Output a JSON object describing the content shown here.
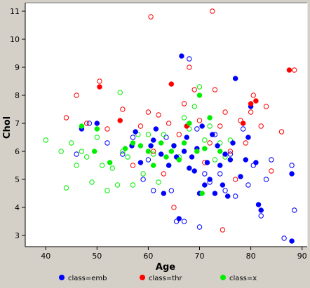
{
  "chart_data": {
    "type": "scatter",
    "title": "",
    "xlabel": "Age",
    "ylabel": "Chol",
    "xlim": [
      36,
      91
    ],
    "ylim": [
      2.6,
      11.3
    ],
    "xticks": [
      40,
      50,
      60,
      70,
      80,
      90
    ],
    "yticks": [
      3,
      4,
      5,
      6,
      7,
      8,
      9,
      10,
      11
    ],
    "grid": false,
    "legend_position": "bottom",
    "series": [
      {
        "name": "class=emb",
        "color": "#0000ff",
        "filled": [
          [
            47.0,
            6.8
          ],
          [
            50.0,
            7.0
          ],
          [
            56.8,
            6.2
          ],
          [
            57.5,
            6.7
          ],
          [
            58.5,
            5.6
          ],
          [
            60.5,
            6.2
          ],
          [
            61.0,
            6.4
          ],
          [
            61.5,
            6.8
          ],
          [
            62.5,
            5.9
          ],
          [
            63.0,
            4.5
          ],
          [
            64.0,
            5.5
          ],
          [
            65.0,
            6.2
          ],
          [
            65.5,
            5.8
          ],
          [
            66.0,
            3.6
          ],
          [
            66.5,
            9.4
          ],
          [
            67.0,
            6.0
          ],
          [
            67.5,
            6.5
          ],
          [
            68.0,
            5.4
          ],
          [
            68.5,
            5.8
          ],
          [
            69.0,
            5.3
          ],
          [
            69.5,
            6.1
          ],
          [
            70.0,
            4.5
          ],
          [
            70.5,
            6.9
          ],
          [
            71.0,
            4.8
          ],
          [
            71.5,
            5.6
          ],
          [
            72.0,
            5.0
          ],
          [
            72.5,
            6.6
          ],
          [
            73.0,
            4.5
          ],
          [
            73.5,
            6.2
          ],
          [
            74.0,
            5.5
          ],
          [
            74.5,
            4.8
          ],
          [
            75.0,
            5.9
          ],
          [
            75.5,
            4.4
          ],
          [
            76.0,
            5.7
          ],
          [
            76.5,
            6.3
          ],
          [
            77.0,
            8.6
          ],
          [
            78.0,
            5.1
          ],
          [
            79.0,
            5.7
          ],
          [
            79.5,
            6.5
          ],
          [
            80.0,
            7.6
          ],
          [
            81.0,
            5.6
          ],
          [
            81.5,
            4.1
          ],
          [
            82.0,
            3.9
          ],
          [
            88.0,
            5.2
          ],
          [
            88.0,
            2.8
          ]
        ],
        "hollow": [
          [
            46.0,
            5.9
          ],
          [
            48.5,
            7.0
          ],
          [
            52.0,
            6.3
          ],
          [
            55.0,
            5.9
          ],
          [
            57.0,
            6.5
          ],
          [
            59.0,
            5.0
          ],
          [
            60.0,
            5.7
          ],
          [
            61.0,
            4.6
          ],
          [
            63.5,
            6.5
          ],
          [
            64.5,
            4.6
          ],
          [
            65.5,
            3.5
          ],
          [
            67.0,
            3.5
          ],
          [
            68.0,
            9.3
          ],
          [
            69.5,
            6.8
          ],
          [
            70.0,
            3.3
          ],
          [
            71.0,
            5.2
          ],
          [
            72.0,
            4.9
          ],
          [
            73.0,
            6.6
          ],
          [
            74.0,
            5.2
          ],
          [
            75.0,
            4.6
          ],
          [
            76.0,
            5.9
          ],
          [
            77.0,
            4.4
          ],
          [
            78.5,
            6.8
          ],
          [
            79.5,
            4.8
          ],
          [
            80.5,
            5.5
          ],
          [
            82.0,
            3.7
          ],
          [
            83.0,
            5.0
          ],
          [
            84.0,
            5.7
          ],
          [
            86.5,
            2.9
          ],
          [
            88.0,
            5.5
          ],
          [
            88.5,
            3.9
          ]
        ]
      },
      {
        "name": "class=thr",
        "color": "#ff0000",
        "filled": [
          [
            50.5,
            8.3
          ],
          [
            54.5,
            7.1
          ],
          [
            64.5,
            8.4
          ],
          [
            67.5,
            6.9
          ],
          [
            78.5,
            7.0
          ],
          [
            80.0,
            7.7
          ],
          [
            81.0,
            7.8
          ],
          [
            87.5,
            8.9
          ]
        ],
        "hollow": [
          [
            44.0,
            7.2
          ],
          [
            46.0,
            8.0
          ],
          [
            48.0,
            7.0
          ],
          [
            50.5,
            8.5
          ],
          [
            52.0,
            6.8
          ],
          [
            55.0,
            7.5
          ],
          [
            57.0,
            5.5
          ],
          [
            58.5,
            6.9
          ],
          [
            60.0,
            7.4
          ],
          [
            60.5,
            10.8
          ],
          [
            61.0,
            6.0
          ],
          [
            62.0,
            7.3
          ],
          [
            63.0,
            5.2
          ],
          [
            64.0,
            7.0
          ],
          [
            65.0,
            4.0
          ],
          [
            66.0,
            6.6
          ],
          [
            67.0,
            7.7
          ],
          [
            68.0,
            9.0
          ],
          [
            69.0,
            8.2
          ],
          [
            70.0,
            7.1
          ],
          [
            71.0,
            5.6
          ],
          [
            72.0,
            6.3
          ],
          [
            72.5,
            11.0
          ],
          [
            73.0,
            8.2
          ],
          [
            74.0,
            6.9
          ],
          [
            74.5,
            3.2
          ],
          [
            75.0,
            7.4
          ],
          [
            76.0,
            6.0
          ],
          [
            77.0,
            5.0
          ],
          [
            78.0,
            7.1
          ],
          [
            79.0,
            6.3
          ],
          [
            80.0,
            7.4
          ],
          [
            80.5,
            8.0
          ],
          [
            82.0,
            6.9
          ],
          [
            83.0,
            7.6
          ],
          [
            84.0,
            5.3
          ],
          [
            86.0,
            6.7
          ],
          [
            88.5,
            8.9
          ]
        ]
      },
      {
        "name": "class=x",
        "color": "#00ee00",
        "filled": [
          [
            47.0,
            6.9
          ],
          [
            49.5,
            6.0
          ],
          [
            50.0,
            6.8
          ],
          [
            52.5,
            5.6
          ],
          [
            55.5,
            6.1
          ],
          [
            57.0,
            6.3
          ],
          [
            58.5,
            6.2
          ],
          [
            60.0,
            6.0
          ],
          [
            61.0,
            5.5
          ],
          [
            62.5,
            6.3
          ],
          [
            63.5,
            5.8
          ],
          [
            64.5,
            6.0
          ],
          [
            66.0,
            5.7
          ],
          [
            67.0,
            6.3
          ],
          [
            68.0,
            7.0
          ],
          [
            69.5,
            6.0
          ],
          [
            70.0,
            8.0
          ],
          [
            70.5,
            4.5
          ],
          [
            71.0,
            6.1
          ],
          [
            72.0,
            7.2
          ],
          [
            74.0,
            6.0
          ]
        ],
        "hollow": [
          [
            40.0,
            6.4
          ],
          [
            43.0,
            6.0
          ],
          [
            44.0,
            4.7
          ],
          [
            45.0,
            6.3
          ],
          [
            46.0,
            5.5
          ],
          [
            47.0,
            6.0
          ],
          [
            48.0,
            5.8
          ],
          [
            49.0,
            4.9
          ],
          [
            50.0,
            6.5
          ],
          [
            51.0,
            5.5
          ],
          [
            52.0,
            4.6
          ],
          [
            53.0,
            5.4
          ],
          [
            54.0,
            4.8
          ],
          [
            54.5,
            8.1
          ],
          [
            55.0,
            6.0
          ],
          [
            56.0,
            5.8
          ],
          [
            57.0,
            4.8
          ],
          [
            58.0,
            6.6
          ],
          [
            59.0,
            5.2
          ],
          [
            60.0,
            6.6
          ],
          [
            61.0,
            5.9
          ],
          [
            62.0,
            4.9
          ],
          [
            63.0,
            6.6
          ],
          [
            64.0,
            5.5
          ],
          [
            65.0,
            6.2
          ],
          [
            66.0,
            5.8
          ],
          [
            67.0,
            7.2
          ],
          [
            68.0,
            6.8
          ],
          [
            69.0,
            7.6
          ],
          [
            70.0,
            8.3
          ],
          [
            71.0,
            6.4
          ],
          [
            72.0,
            6.9
          ],
          [
            73.0,
            5.7
          ],
          [
            74.0,
            6.3
          ],
          [
            75.0,
            5.8
          ],
          [
            76.0,
            6.4
          ]
        ]
      }
    ]
  }
}
